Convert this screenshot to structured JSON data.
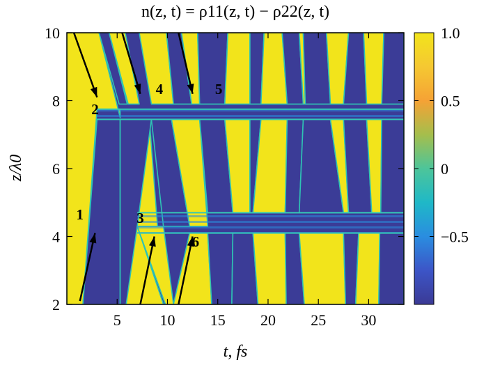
{
  "chart_data": {
    "type": "heatmap",
    "title": "n(z, t) = ρ11(z, t) − ρ22(z, t)",
    "xlabel": "t, fs",
    "ylabel": "z/λ0",
    "xlim": [
      0,
      33.5
    ],
    "ylim": [
      2,
      10
    ],
    "xticks": [
      "5",
      "10",
      "15",
      "20",
      "25",
      "30"
    ],
    "yticks": [
      "2",
      "4",
      "6",
      "8",
      "10"
    ],
    "colorbar": {
      "range": [
        -1,
        1
      ],
      "ticks": [
        "1.0",
        "0.5",
        "0",
        "−0.5"
      ],
      "colors": [
        "#3b3a95",
        "#3c55c7",
        "#2a8de0",
        "#1fb8c7",
        "#4dc59a",
        "#a5be4c",
        "#f5a235",
        "#f5c832",
        "#f2e41b"
      ]
    },
    "colors": {
      "plus_one": "#f2e41b",
      "minus_one": "#3b3c97",
      "arrow": "#000000"
    },
    "grid": false,
    "annotations": [
      {
        "label": "1",
        "t": 1.3,
        "z": 4.5
      },
      {
        "label": "2",
        "t": 2.8,
        "z": 7.6
      },
      {
        "label": "3",
        "t": 7.3,
        "z": 4.4
      },
      {
        "label": "4",
        "t": 9.2,
        "z": 8.2
      },
      {
        "label": "5",
        "t": 15.1,
        "z": 8.2
      },
      {
        "label": "6",
        "t": 12.8,
        "z": 3.7
      }
    ],
    "arrows": [
      {
        "from": [
          1.3,
          2.1
        ],
        "to": [
          2.8,
          4.1
        ]
      },
      {
        "from": [
          0.7,
          10.0
        ],
        "to": [
          3.0,
          8.1
        ]
      },
      {
        "from": [
          5.5,
          10.0
        ],
        "to": [
          7.3,
          8.2
        ]
      },
      {
        "from": [
          11.1,
          10.0
        ],
        "to": [
          12.5,
          8.2
        ]
      },
      {
        "from": [
          7.3,
          2.0
        ],
        "to": [
          8.7,
          4.0
        ]
      },
      {
        "from": [
          11.1,
          2.0
        ],
        "to": [
          12.5,
          4.0
        ]
      }
    ],
    "regions": [
      {
        "value": 1,
        "polygon": [
          [
            0,
            2
          ],
          [
            0,
            10
          ],
          [
            3.2,
            10
          ],
          [
            5.3,
            7.5
          ],
          [
            5.3,
            7.75
          ],
          [
            3.0,
            7.75
          ],
          [
            1.6,
            2
          ]
        ]
      },
      {
        "value": -1,
        "polygon": [
          [
            1.6,
            2
          ],
          [
            3.0,
            7.45
          ],
          [
            5.3,
            7.45
          ],
          [
            5.3,
            2
          ]
        ]
      },
      {
        "value": 1,
        "polygon": [
          [
            5.3,
            2
          ],
          [
            5.3,
            7.45
          ],
          [
            8.2,
            7.45
          ],
          [
            9.6,
            2
          ]
        ]
      },
      {
        "value": -1,
        "polygon": [
          [
            3.2,
            10
          ],
          [
            4.2,
            10
          ],
          [
            6.0,
            7.9
          ],
          [
            5.2,
            7.9
          ]
        ]
      },
      {
        "value": 1,
        "polygon": [
          [
            4.2,
            10
          ],
          [
            5.8,
            10
          ],
          [
            7.2,
            7.9
          ],
          [
            6.1,
            7.9
          ]
        ]
      },
      {
        "value": -1,
        "polygon": [
          [
            5.3,
            7.45
          ],
          [
            5.3,
            2
          ],
          [
            5.9,
            2
          ],
          [
            7.0,
            4.3
          ],
          [
            8.4,
            7.45
          ]
        ]
      },
      {
        "value": -1,
        "polygon": [
          [
            7.0,
            4.3
          ],
          [
            9.6,
            2
          ],
          [
            10.2,
            2
          ],
          [
            9.6,
            4.3
          ]
        ]
      },
      {
        "value": 1,
        "polygon": [
          [
            7.0,
            4.3
          ],
          [
            9.6,
            4.3
          ],
          [
            10.6,
            2
          ],
          [
            9.8,
            2
          ]
        ]
      },
      {
        "value": -1,
        "polygon": [
          [
            8.4,
            7.45
          ],
          [
            9.6,
            4.3
          ],
          [
            12.2,
            4.3
          ],
          [
            10.4,
            7.45
          ]
        ]
      },
      {
        "value": 1,
        "polygon": [
          [
            7.2,
            10
          ],
          [
            9.9,
            10
          ],
          [
            10.6,
            7.9
          ],
          [
            8.4,
            7.9
          ]
        ]
      },
      {
        "value": 1,
        "polygon": [
          [
            10.4,
            7.45
          ],
          [
            12.2,
            4.3
          ],
          [
            14.0,
            4.3
          ],
          [
            13.2,
            7.45
          ]
        ]
      },
      {
        "value": -1,
        "polygon": [
          [
            9.9,
            10
          ],
          [
            11.4,
            10
          ],
          [
            12.4,
            7.9
          ],
          [
            10.6,
            7.9
          ]
        ]
      },
      {
        "value": 1,
        "polygon": [
          [
            11.4,
            10
          ],
          [
            13.0,
            10
          ],
          [
            13.2,
            7.9
          ],
          [
            12.4,
            7.9
          ]
        ]
      },
      {
        "value": -1,
        "polygon": [
          [
            13.0,
            10
          ],
          [
            16.0,
            10
          ],
          [
            15.7,
            7.9
          ],
          [
            13.2,
            7.9
          ]
        ]
      },
      {
        "value": -1,
        "polygon": [
          [
            13.2,
            7.45
          ],
          [
            15.7,
            7.45
          ],
          [
            16.5,
            4.7
          ],
          [
            14.0,
            4.7
          ]
        ]
      },
      {
        "value": 1,
        "polygon": [
          [
            10.6,
            2
          ],
          [
            12.2,
            4.1
          ],
          [
            14.0,
            4.1
          ],
          [
            14.4,
            2
          ]
        ]
      },
      {
        "value": -1,
        "polygon": [
          [
            14.4,
            2
          ],
          [
            14.0,
            4.1
          ],
          [
            16.5,
            4.1
          ],
          [
            16.4,
            2
          ]
        ]
      },
      {
        "value": 1,
        "polygon": [
          [
            16.0,
            10
          ],
          [
            18.2,
            10
          ],
          [
            18.2,
            7.9
          ],
          [
            15.7,
            7.9
          ]
        ]
      },
      {
        "value": 1,
        "polygon": [
          [
            15.7,
            7.45
          ],
          [
            18.2,
            7.45
          ],
          [
            18.2,
            4.7
          ],
          [
            16.5,
            4.7
          ]
        ]
      },
      {
        "value": -1,
        "polygon": [
          [
            16.4,
            2
          ],
          [
            16.5,
            4.1
          ],
          [
            18.5,
            4.1
          ],
          [
            19.0,
            2
          ]
        ]
      },
      {
        "value": -1,
        "polygon": [
          [
            18.2,
            10
          ],
          [
            19.6,
            10
          ],
          [
            19.3,
            7.9
          ],
          [
            18.2,
            7.9
          ]
        ]
      },
      {
        "value": 1,
        "polygon": [
          [
            19.6,
            10
          ],
          [
            21.4,
            10
          ],
          [
            21.9,
            7.9
          ],
          [
            19.3,
            7.9
          ]
        ]
      },
      {
        "value": -1,
        "polygon": [
          [
            18.2,
            7.45
          ],
          [
            19.3,
            7.45
          ],
          [
            18.5,
            4.7
          ],
          [
            18.2,
            4.7
          ]
        ]
      },
      {
        "value": 1,
        "polygon": [
          [
            19.3,
            7.45
          ],
          [
            21.9,
            7.45
          ],
          [
            21.7,
            4.7
          ],
          [
            18.5,
            4.7
          ]
        ]
      },
      {
        "value": 1,
        "polygon": [
          [
            19.0,
            2
          ],
          [
            18.5,
            4.1
          ],
          [
            21.7,
            4.1
          ],
          [
            21.8,
            2
          ]
        ]
      },
      {
        "value": -1,
        "polygon": [
          [
            21.4,
            10
          ],
          [
            23.1,
            10
          ],
          [
            23.5,
            7.9
          ],
          [
            21.9,
            7.9
          ]
        ]
      },
      {
        "value": -1,
        "polygon": [
          [
            21.9,
            7.45
          ],
          [
            23.5,
            7.45
          ],
          [
            23.1,
            4.7
          ],
          [
            21.7,
            4.7
          ]
        ]
      },
      {
        "value": -1,
        "polygon": [
          [
            21.8,
            2
          ],
          [
            21.7,
            4.1
          ],
          [
            23.1,
            4.1
          ],
          [
            23.6,
            2
          ]
        ]
      },
      {
        "value": 1,
        "polygon": [
          [
            23.1,
            10
          ],
          [
            23.5,
            10
          ],
          [
            23.7,
            7.9
          ],
          [
            23.5,
            7.9
          ]
        ]
      },
      {
        "value": -1,
        "polygon": [
          [
            23.5,
            10
          ],
          [
            25.8,
            10
          ],
          [
            26.2,
            7.9
          ],
          [
            23.7,
            7.9
          ]
        ]
      },
      {
        "value": -1,
        "polygon": [
          [
            23.5,
            7.45
          ],
          [
            26.2,
            7.45
          ],
          [
            27.5,
            4.7
          ],
          [
            23.1,
            4.7
          ]
        ]
      },
      {
        "value": 1,
        "polygon": [
          [
            23.6,
            2
          ],
          [
            23.1,
            4.1
          ],
          [
            27.5,
            4.1
          ],
          [
            27.7,
            2
          ]
        ]
      },
      {
        "value": 1,
        "polygon": [
          [
            25.8,
            10
          ],
          [
            28.0,
            10
          ],
          [
            27.5,
            7.9
          ],
          [
            26.2,
            7.9
          ]
        ]
      },
      {
        "value": 1,
        "polygon": [
          [
            26.2,
            7.45
          ],
          [
            27.5,
            7.45
          ],
          [
            28.0,
            4.7
          ],
          [
            27.5,
            4.7
          ]
        ]
      },
      {
        "value": -1,
        "polygon": [
          [
            27.7,
            2
          ],
          [
            27.5,
            4.1
          ],
          [
            29.0,
            4.1
          ],
          [
            28.7,
            2
          ]
        ]
      },
      {
        "value": -1,
        "polygon": [
          [
            28.0,
            10
          ],
          [
            29.5,
            10
          ],
          [
            29.8,
            7.9
          ],
          [
            27.5,
            7.9
          ]
        ]
      },
      {
        "value": -1,
        "polygon": [
          [
            27.5,
            7.45
          ],
          [
            29.8,
            7.45
          ],
          [
            30.3,
            4.7
          ],
          [
            28.0,
            4.7
          ]
        ]
      },
      {
        "value": 1,
        "polygon": [
          [
            28.7,
            2
          ],
          [
            29.0,
            4.1
          ],
          [
            31.1,
            4.1
          ],
          [
            31.0,
            2
          ]
        ]
      },
      {
        "value": 1,
        "polygon": [
          [
            29.5,
            10
          ],
          [
            31.5,
            10
          ],
          [
            31.3,
            7.9
          ],
          [
            29.8,
            7.9
          ]
        ]
      },
      {
        "value": 1,
        "polygon": [
          [
            29.8,
            7.45
          ],
          [
            31.3,
            7.45
          ],
          [
            31.2,
            4.7
          ],
          [
            30.3,
            4.7
          ]
        ]
      },
      {
        "value": -1,
        "polygon": [
          [
            31.0,
            2
          ],
          [
            31.1,
            4.1
          ],
          [
            33.5,
            4.1
          ],
          [
            33.5,
            2
          ]
        ]
      },
      {
        "value": -1,
        "polygon": [
          [
            31.2,
            4.7
          ],
          [
            31.3,
            7.45
          ],
          [
            33.5,
            7.45
          ],
          [
            33.5,
            4.7
          ]
        ]
      },
      {
        "value": -1,
        "polygon": [
          [
            31.5,
            10
          ],
          [
            33.5,
            10
          ],
          [
            33.5,
            7.9
          ],
          [
            31.3,
            7.9
          ]
        ]
      }
    ],
    "stripe_bands": [
      {
        "z": [
          7.45,
          7.75
        ],
        "t": [
          3.0,
          33.5
        ]
      },
      {
        "z": [
          4.1,
          4.7
        ],
        "t": [
          7.0,
          33.5
        ]
      }
    ]
  }
}
